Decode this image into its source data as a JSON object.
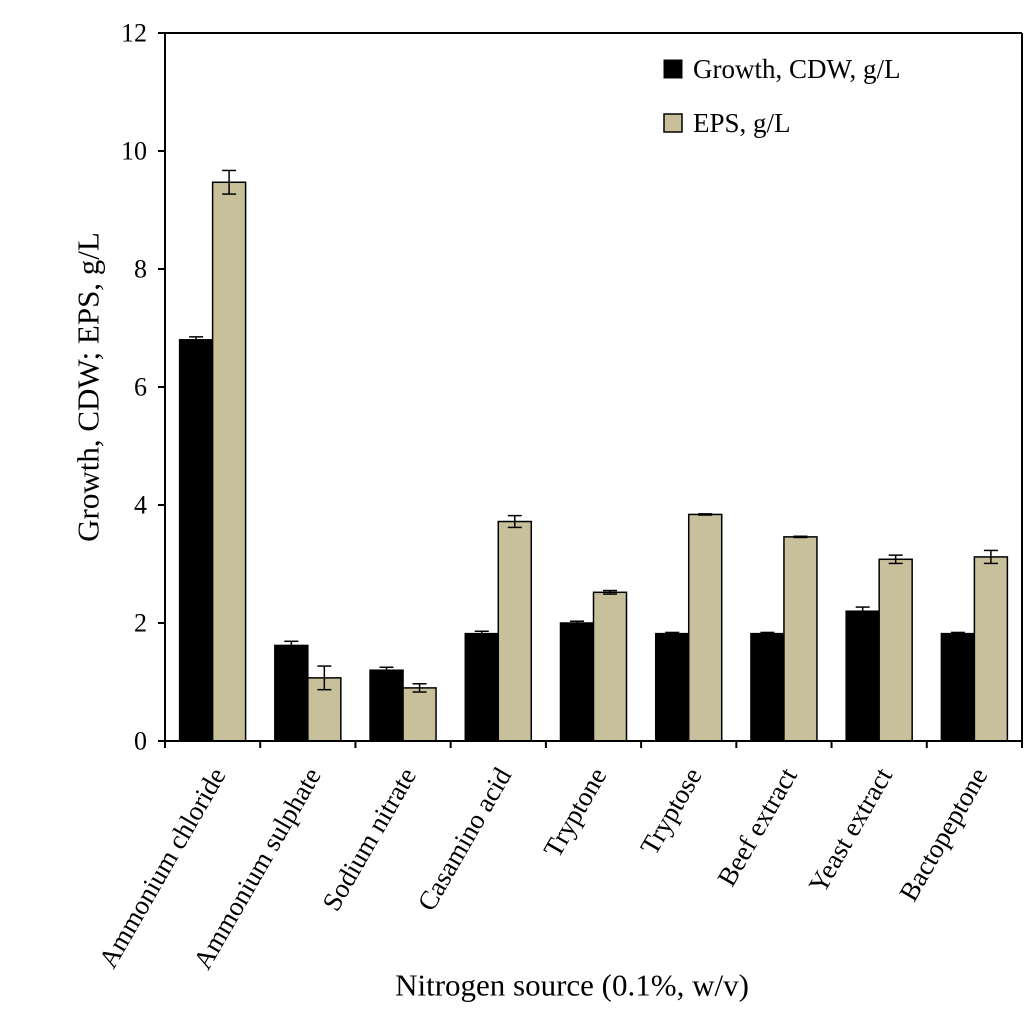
{
  "chart_data": {
    "type": "bar",
    "title": "",
    "xlabel": "Nitrogen source (0.1%, w/v)",
    "ylabel": "Growth, CDW; EPS, g/L",
    "ylim": [
      0,
      12
    ],
    "yticks": [
      "0",
      "2",
      "4",
      "6",
      "8",
      "10",
      "12"
    ],
    "grid": false,
    "legend_position": "top-right",
    "categories": [
      "Ammonium chloride",
      "Ammonium sulphate",
      "Sodium nitrate",
      "Casamino acid",
      "Tryptone",
      "Tryptose",
      "Beef extract",
      "Yeast extract",
      "Bactopeptone"
    ],
    "series": [
      {
        "name": "Growth, CDW, g/L",
        "color": "#000000",
        "values": [
          6.8,
          1.62,
          1.2,
          1.82,
          2.0,
          1.82,
          1.82,
          2.2,
          1.82
        ],
        "errors": [
          0.05,
          0.07,
          0.05,
          0.04,
          0.03,
          0.02,
          0.02,
          0.07,
          0.02
        ]
      },
      {
        "name": "EPS, g/L",
        "color": "#c8c09a",
        "values": [
          9.47,
          1.07,
          0.9,
          3.72,
          2.52,
          3.84,
          3.46,
          3.08,
          3.12
        ],
        "errors": [
          0.2,
          0.2,
          0.07,
          0.1,
          0.03,
          0.01,
          0.01,
          0.07,
          0.11
        ]
      }
    ]
  }
}
